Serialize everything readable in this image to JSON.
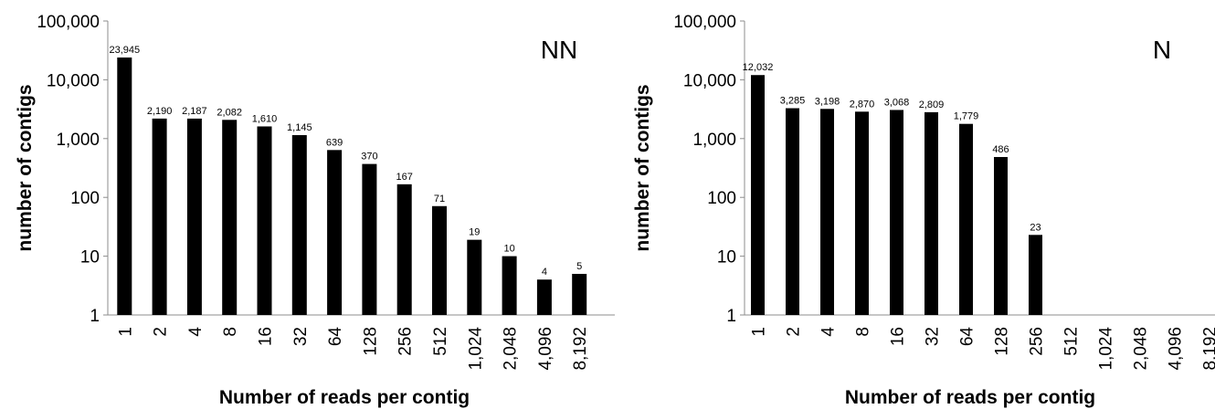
{
  "chart_data": [
    {
      "type": "bar",
      "panel_label": "NN",
      "categories": [
        "1",
        "2",
        "4",
        "8",
        "16",
        "32",
        "64",
        "128",
        "256",
        "512",
        "1,024",
        "2,048",
        "4,096",
        "8,192"
      ],
      "values": [
        23945,
        2190,
        2187,
        2082,
        1610,
        1145,
        639,
        370,
        167,
        71,
        19,
        10,
        4,
        5
      ],
      "value_labels": [
        "23,945",
        "2,190",
        "2,187",
        "2,082",
        "1,610",
        "1,145",
        "639",
        "370",
        "167",
        "71",
        "19",
        "10",
        "4",
        "5"
      ],
      "y_ticks": [
        1,
        10,
        100,
        1000,
        10000,
        100000
      ],
      "y_tick_labels": [
        "1",
        "10",
        "100",
        "1,000",
        "10,000",
        "100,000"
      ],
      "yscale": "log",
      "ylim": [
        1,
        100000
      ],
      "xlabel": "Number of reads per contig",
      "ylabel": "number of contigs",
      "grid": false,
      "bar_color": "#000000"
    },
    {
      "type": "bar",
      "panel_label": "N",
      "categories": [
        "1",
        "2",
        "4",
        "8",
        "16",
        "32",
        "64",
        "128",
        "256",
        "512",
        "1,024",
        "2,048",
        "4,096",
        "8,192"
      ],
      "values": [
        12032,
        3285,
        3198,
        2870,
        3068,
        2809,
        1779,
        486,
        23,
        null,
        null,
        null,
        null,
        null
      ],
      "value_labels": [
        "12,032",
        "3,285",
        "3,198",
        "2,870",
        "3,068",
        "2,809",
        "1,779",
        "486",
        "23",
        "",
        "",
        "",
        "",
        ""
      ],
      "y_ticks": [
        1,
        10,
        100,
        1000,
        10000,
        100000
      ],
      "y_tick_labels": [
        "1",
        "10",
        "100",
        "1,000",
        "10,000",
        "100,000"
      ],
      "yscale": "log",
      "ylim": [
        1,
        100000
      ],
      "xlabel": "Number of reads per contig",
      "ylabel": "number of contigs",
      "grid": false,
      "bar_color": "#000000"
    }
  ]
}
